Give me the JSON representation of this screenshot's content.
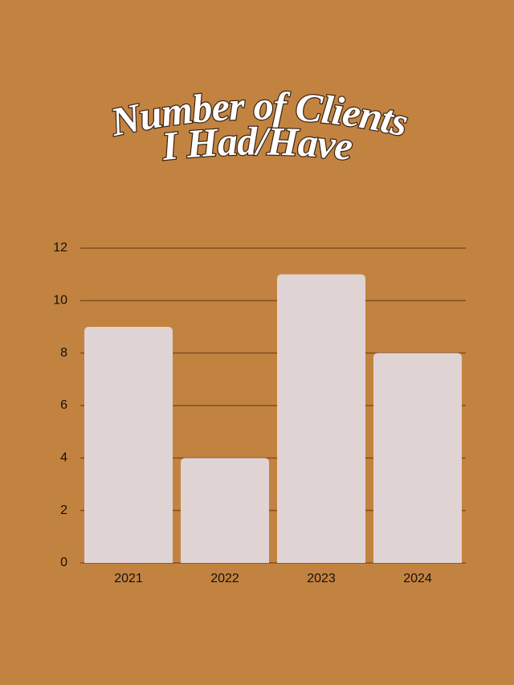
{
  "chart_data": {
    "type": "bar",
    "title": [
      "Number of Clients",
      "I Had/Have"
    ],
    "categories": [
      "2021",
      "2022",
      "2023",
      "2024"
    ],
    "values": [
      9,
      4,
      11,
      8
    ],
    "color": "#e0d3d4",
    "ylim": [
      0,
      12
    ],
    "yticks": [
      0,
      2,
      4,
      6,
      8,
      10,
      12
    ],
    "grid": true
  }
}
